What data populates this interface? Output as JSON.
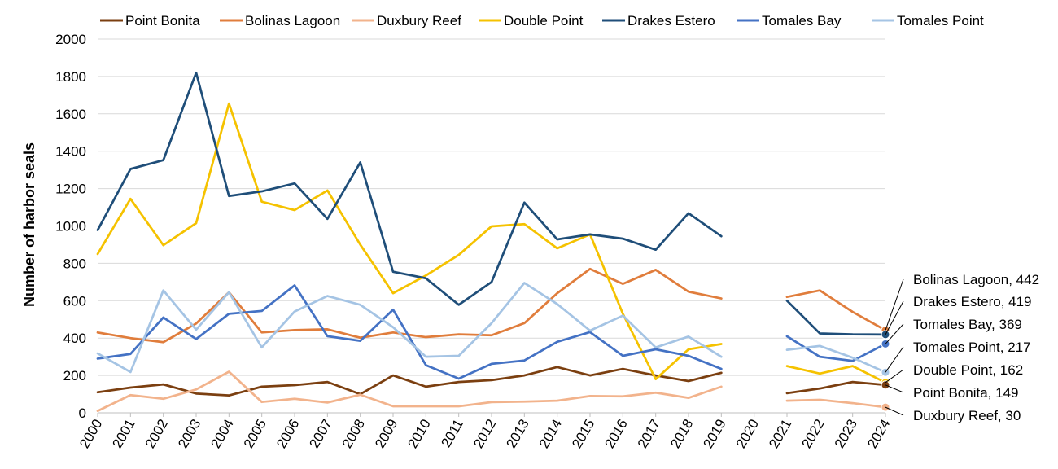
{
  "chart_data": {
    "type": "line",
    "title": "",
    "xlabel": "",
    "ylabel": "Number of harbor seals",
    "ylim": [
      0,
      2000
    ],
    "yticks": [
      "0",
      "200",
      "400",
      "600",
      "800",
      "1000",
      "1200",
      "1400",
      "1600",
      "1800",
      "2000"
    ],
    "x": [
      "2000",
      "2001",
      "2002",
      "2003",
      "2004",
      "2005",
      "2006",
      "2007",
      "2008",
      "2009",
      "2010",
      "2011",
      "2012",
      "2013",
      "2014",
      "2015",
      "2016",
      "2017",
      "2018",
      "2019",
      "2020",
      "2021",
      "2022",
      "2023",
      "2024"
    ],
    "grid": "horizontal",
    "legend": "top",
    "series": [
      {
        "name": "Point Bonita",
        "color": "#7B3F10",
        "values": [
          110,
          135,
          152,
          103,
          93,
          140,
          148,
          165,
          100,
          200,
          140,
          165,
          175,
          200,
          245,
          200,
          235,
          200,
          170,
          214,
          null,
          105,
          130,
          165,
          149
        ]
      },
      {
        "name": "Bolinas Lagoon",
        "color": "#E07D3C",
        "values": [
          430,
          400,
          378,
          478,
          645,
          430,
          443,
          447,
          402,
          430,
          405,
          420,
          415,
          480,
          640,
          770,
          690,
          765,
          648,
          612,
          null,
          620,
          655,
          540,
          442
        ]
      },
      {
        "name": "Duxbury Reef",
        "color": "#F2B38C",
        "values": [
          10,
          95,
          75,
          125,
          220,
          58,
          75,
          55,
          97,
          35,
          35,
          35,
          57,
          60,
          65,
          90,
          88,
          108,
          80,
          140,
          null,
          65,
          70,
          52,
          30
        ]
      },
      {
        "name": "Double Point",
        "color": "#F5C200",
        "values": [
          850,
          1145,
          897,
          1015,
          1655,
          1130,
          1085,
          1190,
          900,
          640,
          735,
          845,
          998,
          1010,
          880,
          955,
          530,
          180,
          340,
          368,
          null,
          250,
          210,
          250,
          162
        ]
      },
      {
        "name": "Drakes Estero",
        "color": "#1F4E79",
        "values": [
          978,
          1305,
          1352,
          1820,
          1160,
          1185,
          1228,
          1038,
          1340,
          755,
          720,
          578,
          700,
          1125,
          928,
          955,
          932,
          873,
          1068,
          945,
          null,
          600,
          425,
          420,
          419
        ]
      },
      {
        "name": "Tomales Bay",
        "color": "#4472C4",
        "values": [
          290,
          315,
          510,
          395,
          530,
          545,
          682,
          410,
          385,
          552,
          255,
          183,
          262,
          280,
          380,
          432,
          305,
          340,
          305,
          235,
          null,
          410,
          300,
          278,
          369
        ]
      },
      {
        "name": "Tomales Point",
        "color": "#A5C4E4",
        "values": [
          318,
          218,
          655,
          445,
          645,
          350,
          542,
          625,
          578,
          458,
          300,
          305,
          480,
          695,
          582,
          440,
          520,
          350,
          408,
          300,
          null,
          337,
          358,
          295,
          217
        ]
      }
    ],
    "end_labels": [
      {
        "series": "Bolinas Lagoon",
        "text": "Bolinas Lagoon, 442"
      },
      {
        "series": "Drakes Estero",
        "text": "Drakes Estero, 419"
      },
      {
        "series": "Tomales Bay",
        "text": "Tomales Bay, 369"
      },
      {
        "series": "Tomales Point",
        "text": "Tomales Point, 217"
      },
      {
        "series": "Double Point",
        "text": "Double Point, 162"
      },
      {
        "series": "Point Bonita",
        "text": "Point Bonita, 149"
      },
      {
        "series": "Duxbury Reef",
        "text": "Duxbury Reef, 30"
      }
    ]
  }
}
